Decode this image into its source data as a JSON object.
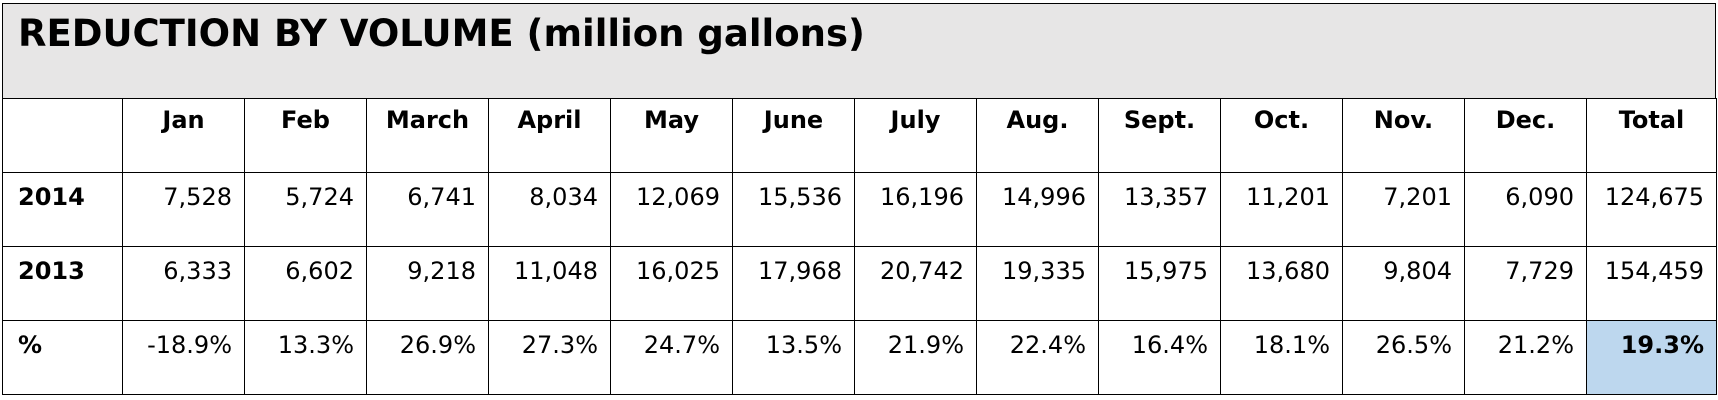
{
  "title": "REDUCTION BY VOLUME (million gallons)",
  "columns": [
    "Jan",
    "Feb",
    "March",
    "April",
    "May",
    "June",
    "July",
    "Aug.",
    "Sept.",
    "Oct.",
    "Nov.",
    "Dec.",
    "Total"
  ],
  "rows": [
    {
      "label": "2014",
      "values": [
        "7,528",
        "5,724",
        "6,741",
        "8,034",
        "12,069",
        "15,536",
        "16,196",
        "14,996",
        "13,357",
        "11,201",
        "7,201",
        "6,090",
        "124,675"
      ]
    },
    {
      "label": "2013",
      "values": [
        "6,333",
        "6,602",
        "9,218",
        "11,048",
        "16,025",
        "17,968",
        "20,742",
        "19,335",
        "15,975",
        "13,680",
        "9,804",
        "7,729",
        "154,459"
      ]
    },
    {
      "label": "%",
      "values": [
        "-18.9%",
        "13.3%",
        "26.9%",
        "27.3%",
        "24.7%",
        "13.5%",
        "21.9%",
        "22.4%",
        "16.4%",
        "18.1%",
        "26.5%",
        "21.2%",
        "19.3%"
      ]
    }
  ],
  "highlight_color": "#bdd7ee",
  "title_background": "#e7e6e6"
}
